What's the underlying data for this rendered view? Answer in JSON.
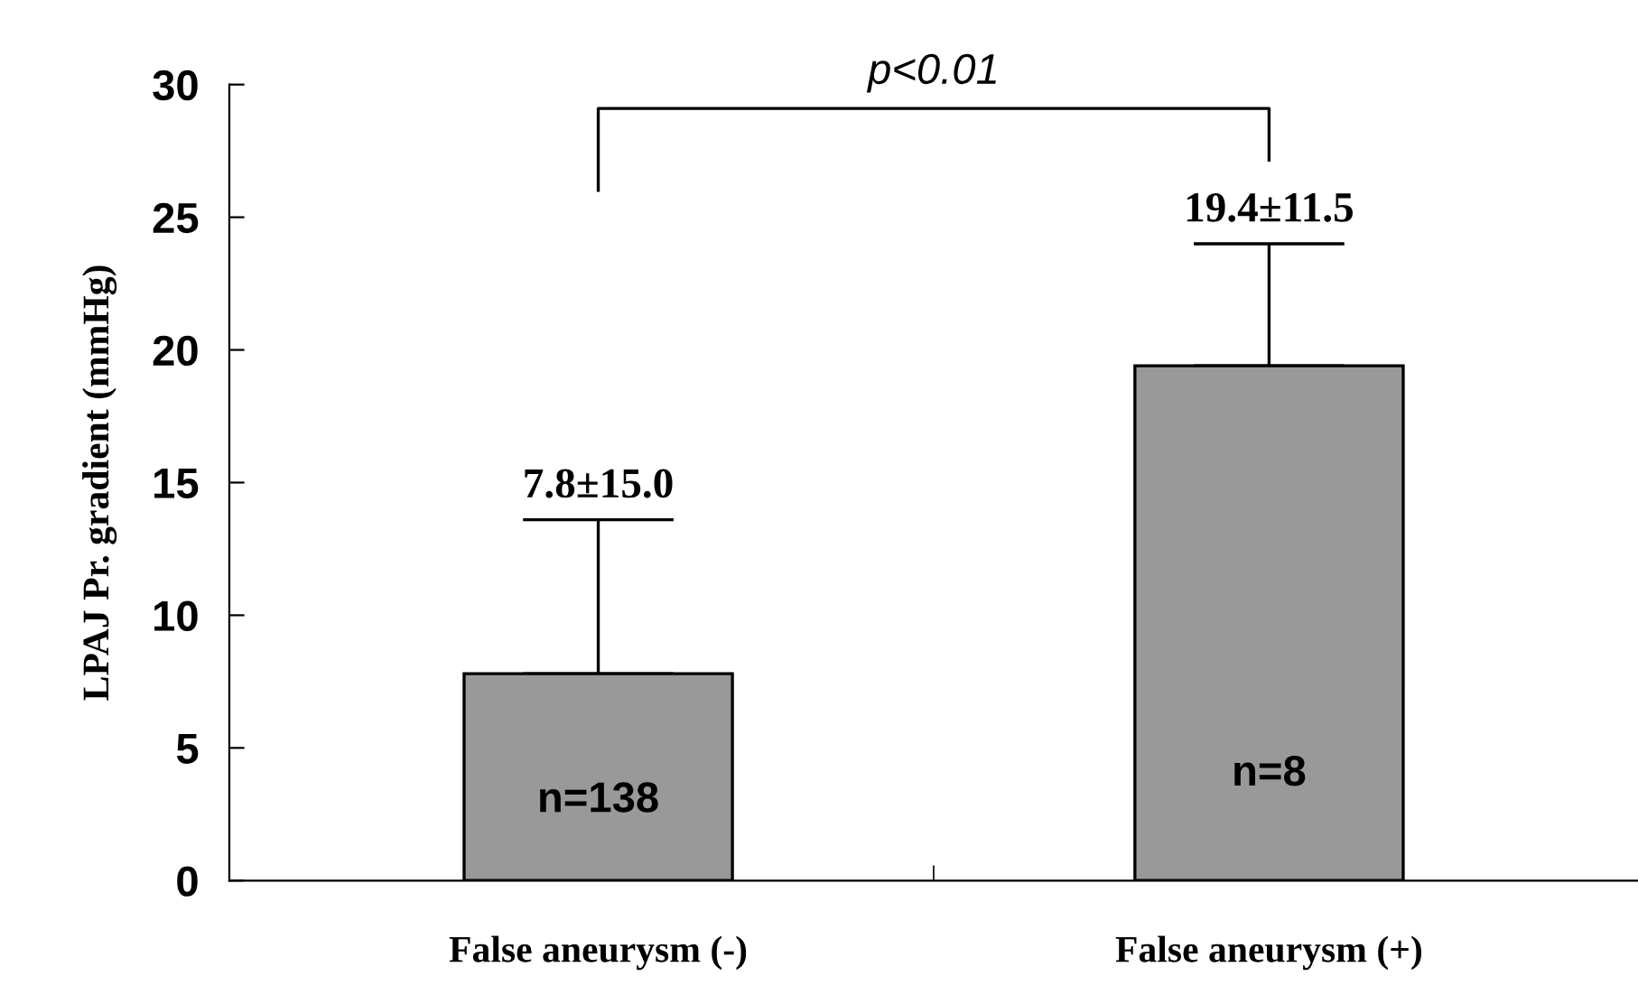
{
  "chart_data": {
    "type": "bar",
    "ylabel": "LPAJ Pr. gradient (mmHg)",
    "categories": [
      "False aneurysm (-)",
      "False aneurysm (+)"
    ],
    "values": [
      7.8,
      19.4
    ],
    "color": "#999999",
    "errors": [
      [
        7.8,
        13.6
      ],
      [
        19.4,
        24.0
      ]
    ],
    "annotations": [
      "p<0.01",
      "7.8±15.0",
      "19.4±11.5",
      "n=138",
      "n=8"
    ],
    "ylim": [
      0,
      30
    ],
    "yticks": [
      0,
      5,
      10,
      15,
      20,
      25,
      30
    ],
    "grid": false,
    "legend": false
  }
}
